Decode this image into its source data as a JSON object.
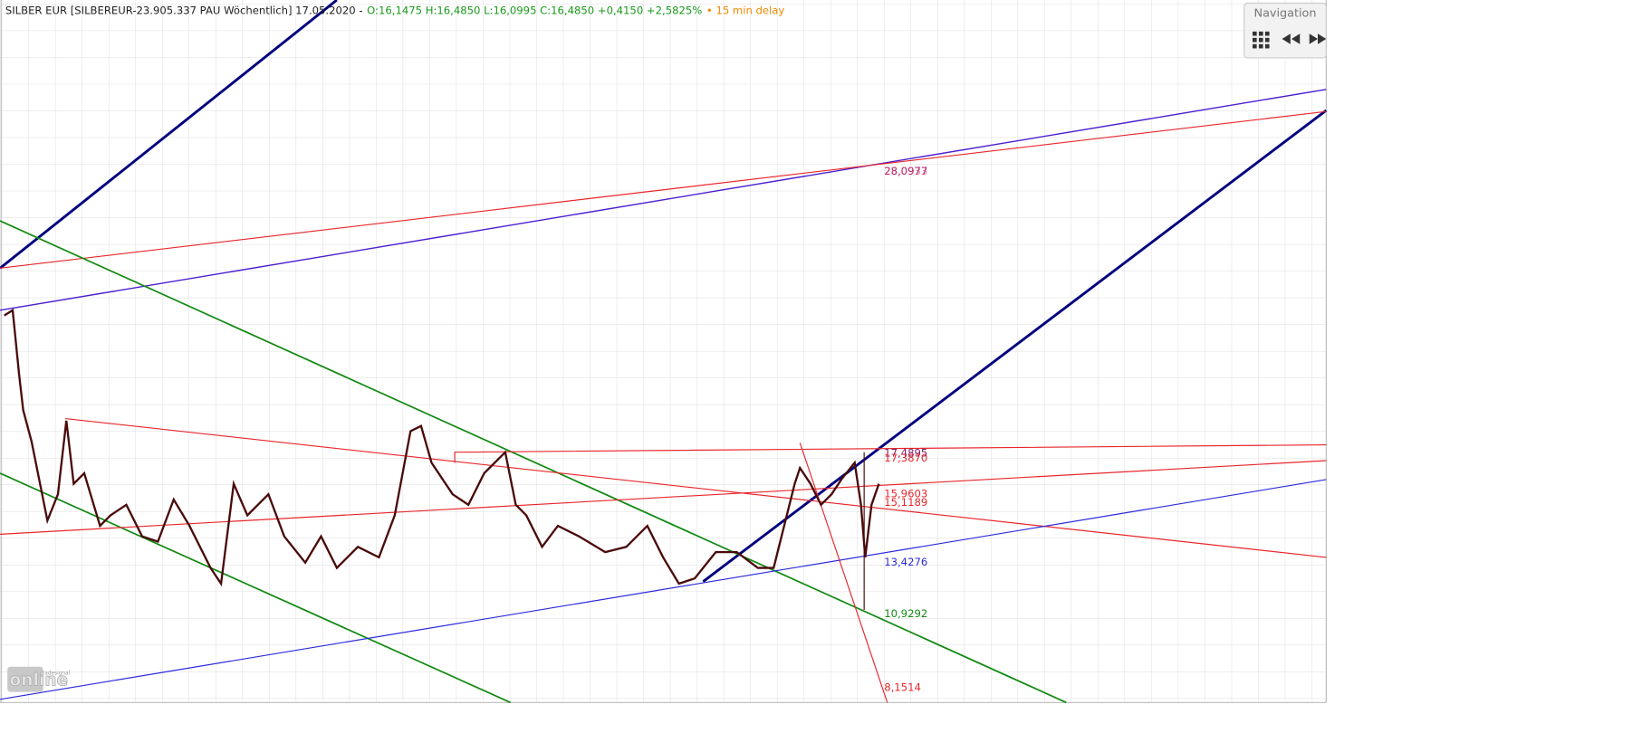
{
  "header": {
    "instrument": "SILBER EUR [SILBEREUR-23.905.337 PAU Wöchentlich] 17.05.2020 -",
    "ohlc": "O:16,1475 H:16,4850 L:16,0995 C:16,4850 +0,4150 +2,5825%",
    "delay": "• 15 min delay"
  },
  "navigation": {
    "title": "Navigation"
  },
  "price_labels": [
    "28,0977",
    "28,0933",
    "17,4895",
    "17,3870",
    "15,9603",
    "15,1189",
    "13,4276",
    "10,9292",
    "8,1514"
  ],
  "logo": {
    "brand": "Tradesignal",
    "name": "online"
  }
}
